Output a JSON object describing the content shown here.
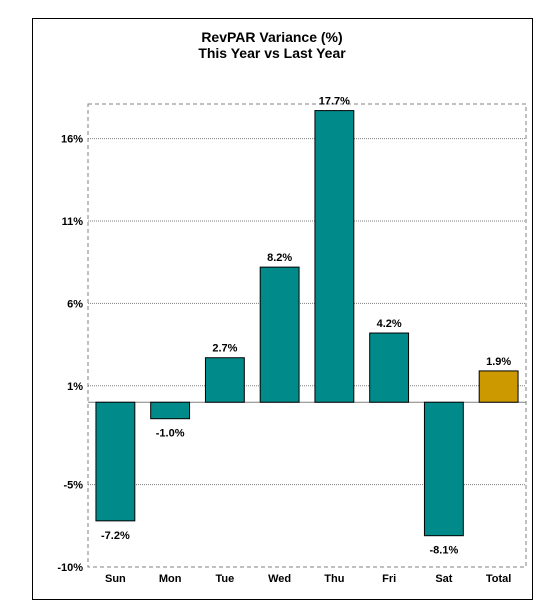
{
  "chart_data": {
    "type": "bar",
    "title": "RevPAR Variance (%)",
    "subtitle": "This Year vs Last Year",
    "categories": [
      "Sun",
      "Mon",
      "Tue",
      "Wed",
      "Thu",
      "Fri",
      "Sat",
      "Total"
    ],
    "values": [
      -7.2,
      -1.0,
      2.7,
      8.2,
      17.7,
      4.2,
      -8.1,
      1.9
    ],
    "data_labels": [
      "-7.2%",
      "-1.0%",
      "2.7%",
      "8.2%",
      "17.7%",
      "4.2%",
      "-8.1%",
      "1.9%"
    ],
    "yticks": [
      -10,
      -5,
      1,
      6,
      11,
      16
    ],
    "ytick_labels": [
      "-10%",
      "-5%",
      "1%",
      "6%",
      "11%",
      "16%"
    ],
    "ylim": [
      -10,
      18.1
    ],
    "baseline": 0,
    "grid": true,
    "colors": {
      "bar": "#008B8B",
      "total_bar": "#CC9900",
      "grid": "#808080"
    }
  }
}
